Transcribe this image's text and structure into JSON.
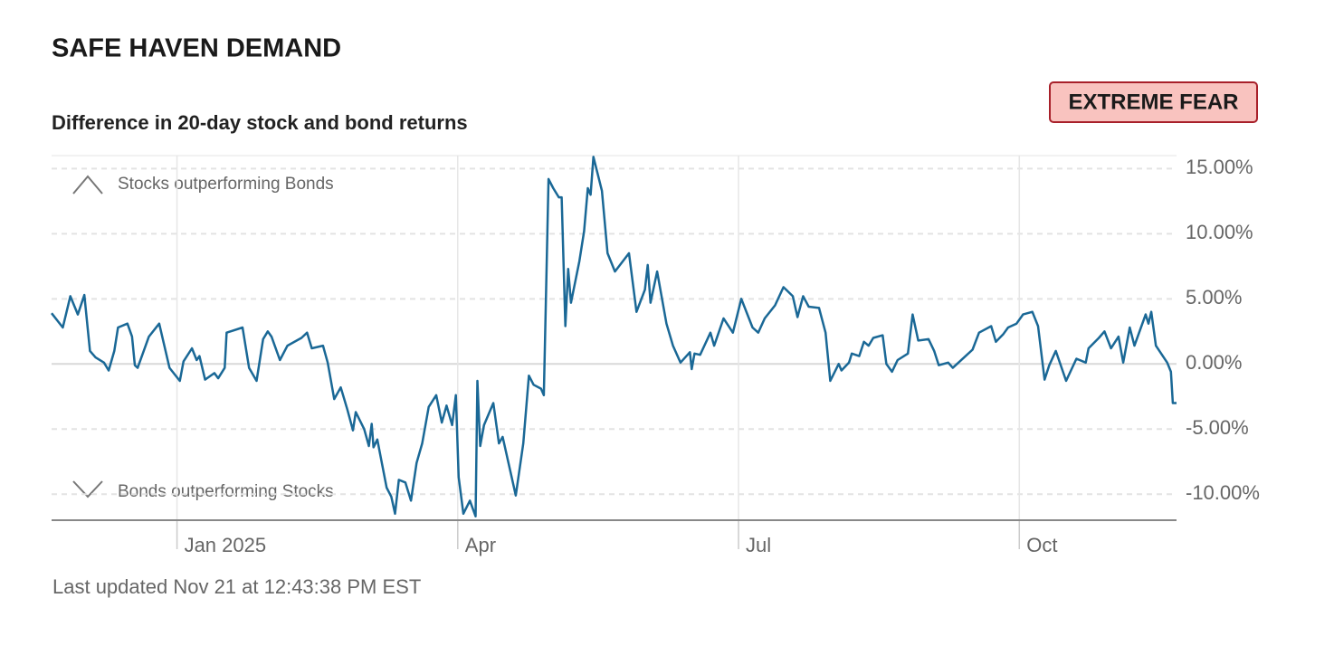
{
  "chart_data": {
    "type": "line",
    "title": "SAFE HAVEN DEMAND",
    "subtitle": "Difference in 20-day stock and bond returns",
    "badge": "EXTREME FEAR",
    "annotations": [
      "Stocks outperforming Bonds",
      "Bonds outperforming Stocks"
    ],
    "footnote": "Last updated Nov 21 at 12:43:38 PM EST",
    "color": "#1a6896",
    "grid": true,
    "xlim": [
      -1.34,
      10.68
    ],
    "xticks": [
      {
        "value": 0,
        "label": "Jan 2025"
      },
      {
        "value": 3,
        "label": "Apr"
      },
      {
        "value": 6,
        "label": "Jul"
      },
      {
        "value": 9,
        "label": "Oct"
      }
    ],
    "ylim": [
      -12,
      16
    ],
    "yticks": [
      {
        "value": 15,
        "label": "15.00%"
      },
      {
        "value": 10,
        "label": "10.00%"
      },
      {
        "value": 5,
        "label": "5.00%"
      },
      {
        "value": 0,
        "label": "0.00%"
      },
      {
        "value": -5,
        "label": "-5.00%"
      },
      {
        "value": -10,
        "label": "-10.00%"
      }
    ],
    "x": [
      -1.34,
      -1.22,
      -1.14,
      -1.06,
      -0.99,
      -0.93,
      -0.87,
      -0.78,
      -0.73,
      -0.67,
      -0.63,
      -0.53,
      -0.48,
      -0.45,
      -0.42,
      -0.3,
      -0.19,
      -0.08,
      0.03,
      0.07,
      0.16,
      0.21,
      0.24,
      0.3,
      0.4,
      0.44,
      0.51,
      0.53,
      0.7,
      0.77,
      0.85,
      0.92,
      0.97,
      1.01,
      1.1,
      1.18,
      1.33,
      1.39,
      1.44,
      1.56,
      1.61,
      1.68,
      1.75,
      1.82,
      1.88,
      1.91,
      2.0,
      2.05,
      2.08,
      2.1,
      2.14,
      2.24,
      2.29,
      2.33,
      2.37,
      2.44,
      2.5,
      2.56,
      2.62,
      2.69,
      2.77,
      2.83,
      2.88,
      2.94,
      2.98,
      3.01,
      3.06,
      3.13,
      3.19,
      3.21,
      3.24,
      3.28,
      3.38,
      3.44,
      3.48,
      3.62,
      3.7,
      3.76,
      3.81,
      3.89,
      3.92,
      3.97,
      4.02,
      4.08,
      4.11,
      4.15,
      4.18,
      4.21,
      4.3,
      4.35,
      4.39,
      4.42,
      4.45,
      4.54,
      4.6,
      4.68,
      4.83,
      4.91,
      5.0,
      5.03,
      5.06,
      5.13,
      5.23,
      5.3,
      5.38,
      5.48,
      5.5,
      5.53,
      5.59,
      5.7,
      5.74,
      5.84,
      5.94,
      6.03,
      6.15,
      6.21,
      6.28,
      6.39,
      6.48,
      6.58,
      6.63,
      6.69,
      6.75,
      6.86,
      6.93,
      6.98,
      7.07,
      7.1,
      7.18,
      7.21,
      7.29,
      7.34,
      7.39,
      7.44,
      7.54,
      7.58,
      7.64,
      7.7,
      7.81,
      7.86,
      7.92,
      8.03,
      8.09,
      8.14,
      8.24,
      8.29,
      8.41,
      8.5,
      8.57,
      8.7,
      8.75,
      8.83,
      8.88,
      8.97,
      9.04,
      9.14,
      9.2,
      9.27,
      9.32,
      9.39,
      9.5,
      9.61,
      9.71,
      9.74,
      9.85,
      9.91,
      9.98,
      10.06,
      10.11,
      10.18,
      10.23,
      10.35,
      10.38,
      10.41,
      10.46,
      10.58,
      10.62,
      10.64,
      10.68
    ],
    "values": [
      3.9,
      2.8,
      5.2,
      3.8,
      5.3,
      1.0,
      0.5,
      0.1,
      -0.5,
      1.0,
      2.8,
      3.1,
      2.1,
      -0.1,
      -0.3,
      2.1,
      3.1,
      -0.3,
      -1.3,
      0.2,
      1.2,
      0.3,
      0.6,
      -1.2,
      -0.7,
      -1.1,
      -0.3,
      2.4,
      2.8,
      -0.3,
      -1.3,
      1.9,
      2.5,
      2.1,
      0.3,
      1.4,
      2.0,
      2.4,
      1.2,
      1.4,
      0.1,
      -2.7,
      -1.8,
      -3.5,
      -5.1,
      -3.7,
      -5.0,
      -6.3,
      -4.6,
      -6.4,
      -5.8,
      -9.5,
      -10.2,
      -11.5,
      -8.9,
      -9.1,
      -10.5,
      -7.6,
      -6.1,
      -3.3,
      -2.4,
      -4.5,
      -3.2,
      -4.7,
      -2.4,
      -8.7,
      -11.5,
      -10.5,
      -11.7,
      -1.3,
      -6.3,
      -4.7,
      -3.0,
      -6.1,
      -5.6,
      -10.1,
      -6.1,
      -0.9,
      -1.6,
      -1.9,
      -2.4,
      14.2,
      13.5,
      12.8,
      12.8,
      2.9,
      7.3,
      4.7,
      7.9,
      10.2,
      13.5,
      13.0,
      15.9,
      13.3,
      8.5,
      7.1,
      8.5,
      4.0,
      5.7,
      7.6,
      4.7,
      7.1,
      3.1,
      1.4,
      0.1,
      0.9,
      -0.4,
      0.8,
      0.7,
      2.4,
      1.4,
      3.5,
      2.4,
      5.0,
      2.8,
      2.4,
      3.5,
      4.5,
      5.9,
      5.2,
      3.6,
      5.2,
      4.4,
      4.3,
      2.4,
      -1.3,
      0.0,
      -0.5,
      0.1,
      0.8,
      0.6,
      1.7,
      1.4,
      2.0,
      2.2,
      0.0,
      -0.6,
      0.3,
      0.8,
      3.8,
      1.8,
      1.9,
      1.0,
      -0.1,
      0.1,
      -0.3,
      0.5,
      1.1,
      2.4,
      2.9,
      1.7,
      2.3,
      2.8,
      3.1,
      3.8,
      4.0,
      2.9,
      -1.2,
      -0.1,
      1.0,
      -1.3,
      0.4,
      0.1,
      1.2,
      2.0,
      2.5,
      1.2,
      2.1,
      0.1,
      2.8,
      1.4,
      3.8,
      3.1,
      4.0,
      1.4,
      0.1,
      -0.6,
      -3.0,
      -3.0
    ]
  }
}
